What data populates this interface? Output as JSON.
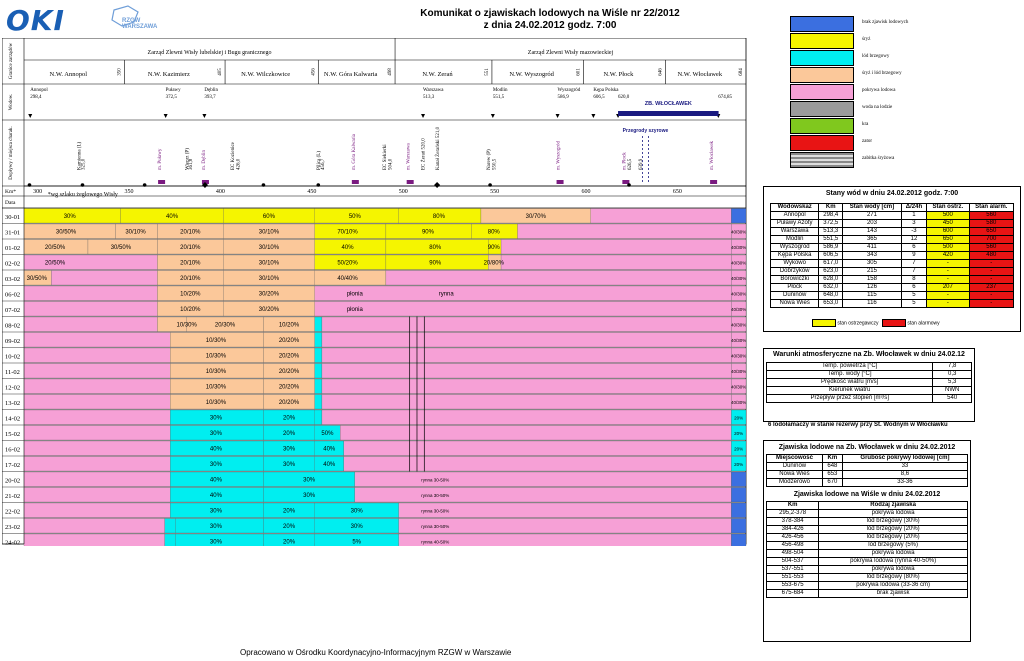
{
  "header": {
    "logo_okl": "OKI",
    "logo_rzgw": "RZGW WARSZAWA",
    "title_line1": "Komunikat o zjawiskach lodowych na Wiśle nr 22/2012",
    "title_line2": "z dnia 24.02.2012 godz. 7:00"
  },
  "footer": "Opracowano w Ośrodku Koordynacyjno-Informacyjnym RZGW w Warszawie",
  "colors": {
    "brak": "#3b6fe0",
    "sryz": "#f5f500",
    "lod_brzegowy": "#00eef0",
    "sryz_lod": "#fbc89a",
    "pokrywa": "#f6a0d6",
    "woda_na_lodzie": "#9b9b9b",
    "kra": "#80c81e",
    "zator": "#e81414",
    "strefa": "#3b3bd8",
    "dark": "#1a1a80",
    "ostrz": "#f5f500",
    "alarm": "#e81414"
  },
  "legend": [
    {
      "label": "brak zjawisk lodowych",
      "color": "#3b6fe0"
    },
    {
      "label": "śryż",
      "color": "#f5f500"
    },
    {
      "label": "lód brzegowy",
      "color": "#00eef0"
    },
    {
      "label": "śryż i lód brzegowy",
      "color": "#fbc89a"
    },
    {
      "label": "pokrywa lodowa",
      "color": "#f6a0d6"
    },
    {
      "label": "woda na lodzie",
      "color": "#9b9b9b"
    },
    {
      "label": "kra",
      "color": "#80c81e"
    },
    {
      "label": "zator",
      "color": "#e81414"
    },
    {
      "label": "zabitka śryżowa",
      "color": "#b8b8b8"
    }
  ],
  "left_labels": {
    "granice": "Granice zarządów",
    "wodow": "Wodow.",
    "dopl": "Dopływy / miejsca charak.",
    "km": "Km*",
    "data": "Data"
  },
  "zarzady": [
    {
      "name": "Zarząd Zlewni Wisły lubelskiej i Bugu granicznego"
    },
    {
      "name": "Zarząd Zlewni Wisły mazowieckiej"
    }
  ],
  "nw": [
    {
      "label": "N.W. Annopol",
      "km": "350"
    },
    {
      "label": "N.W. Kazimierz",
      "km": "405"
    },
    {
      "label": "N.W. Wilczkowice",
      "km": "456"
    },
    {
      "label": "N.W. Góra Kalwaria",
      "km": "498"
    },
    {
      "label": "N.W. Zerań",
      "km": "551"
    },
    {
      "label": "N.W. Wyszogród",
      "km": "601"
    },
    {
      "label": "N.W. Płock",
      "km": "646"
    },
    {
      "label": "N.W. Włocławek",
      "km": "684"
    }
  ],
  "wodowskazy": [
    {
      "name": "Annopol",
      "km": "298,4"
    },
    {
      "name": "Puławy",
      "km": "372,5"
    },
    {
      "name": "Dęblin",
      "km": "393,7"
    },
    {
      "name": "Warszawa",
      "km": "513,3"
    },
    {
      "name": "Modlin",
      "km": "551,5"
    },
    {
      "name": "Wyszogród",
      "km": "586,9"
    },
    {
      "name": "Kępa Polska",
      "km": "606,5"
    },
    {
      "name": "",
      "km": "620,0"
    },
    {
      "name": "",
      "km": "674,85"
    }
  ],
  "zb_wloclawek": "ZB. WŁOCŁAWEK",
  "doplywy": [
    "Kamienna (L)",
    "325,0",
    "m. Puławy",
    "Wieprz (P)",
    "361,8",
    "m. Dęblin",
    "EC Kozienice",
    "426,0",
    "Pilica (L)",
    "456,7",
    "m. Góra Kalwaria",
    "EC Siekierki",
    "504,0",
    "m. Warszawa",
    "EC Żerań 520,0",
    "Kanał Żerański 521,0",
    "Narew (P)",
    "550,5",
    "m. Wyszogród",
    "m. Płock",
    "626,5",
    "639,9",
    "Przegrody szyrowe",
    "m. Włocławek"
  ],
  "km_axis_note": "*wg szlaku żeglowego Wisły",
  "km_ticks": [
    "300",
    "350",
    "400",
    "450",
    "500",
    "550",
    "600",
    "650"
  ],
  "dates": [
    "30-01",
    "31-01",
    "01-02",
    "02-02",
    "03-02",
    "06-02",
    "07-02",
    "08-02",
    "09-02",
    "10-02",
    "11-02",
    "12-02",
    "13-02",
    "14-02",
    "15-02",
    "16-02",
    "17-02",
    "20-02",
    "21-02",
    "22-02",
    "23-02",
    "24-02"
  ],
  "row_labels": [
    [
      "30%",
      "40%",
      "60%",
      "50%",
      "80%",
      "30/70%"
    ],
    [
      "30/50%",
      "30/10%",
      "20/10%",
      "30/10%",
      "70/10%",
      "90%",
      "80%",
      "40/30%"
    ],
    [
      "20/50%",
      "30/50%",
      "20/10%",
      "30/10%",
      "40%",
      "80%",
      "90%",
      "40/30%"
    ],
    [
      "20/50%",
      "20/10%",
      "30/10%",
      "50/20%",
      "90%",
      "20/80%",
      "40/30%"
    ],
    [
      "30/50%",
      "20/10%",
      "30/10%",
      "40/40%",
      "40/30%"
    ],
    [
      "10/20%",
      "30/20%",
      "płonia",
      "rynna",
      "40/30%"
    ],
    [
      "10/20%",
      "30/20%",
      "płonia",
      "40/30%"
    ],
    [
      "10/30%",
      "20/30%",
      "10/20%",
      "40/30%"
    ],
    [
      "10/30%",
      "20/20%",
      "40/30%"
    ],
    [
      "10/30%",
      "20/20%",
      "40/30%"
    ],
    [
      "10/30%",
      "20/20%",
      "40/30%"
    ],
    [
      "10/30%",
      "20/20%",
      "40/30%"
    ],
    [
      "10/30%",
      "20/20%",
      "40/30%"
    ],
    [
      "30%",
      "20%",
      "20%"
    ],
    [
      "30%",
      "20%",
      "50%",
      "20%"
    ],
    [
      "40%",
      "30%",
      "40%",
      "20%"
    ],
    [
      "30%",
      "30%",
      "40%",
      "20%"
    ],
    [
      "40%",
      "30%",
      "rynna 30-50%"
    ],
    [
      "40%",
      "30%",
      "rynna 30-50%"
    ],
    [
      "30%",
      "20%",
      "30%",
      "rynna 30-50%"
    ],
    [
      "30%",
      "20%",
      "30%",
      "rynna 30-50%"
    ],
    [
      "30%",
      "20%",
      "5%",
      "rynna 40-50%"
    ]
  ],
  "chart_data": {
    "type": "heatmap",
    "title": "Komunikat o zjawiskach lodowych na Wiśle nr 22/2012",
    "x_axis": "Km",
    "x_range": [
      295,
      690
    ],
    "rows": "dates",
    "segments_by_date": {
      "30-01": [
        [
          295,
          348,
          "sryz",
          "30%"
        ],
        [
          348,
          404,
          "sryz",
          "40%"
        ],
        [
          404,
          454,
          "sryz",
          "60%"
        ],
        [
          454,
          500,
          "sryz",
          "50%"
        ],
        [
          500,
          545,
          "sryz",
          "80%"
        ],
        [
          545,
          605,
          "sryz_lod",
          "30/70%"
        ],
        [
          605,
          682,
          "pokrywa",
          ""
        ],
        [
          682,
          690,
          "brak",
          ""
        ]
      ],
      "31-01": [
        [
          295,
          345,
          "sryz_lod",
          "30/50%"
        ],
        [
          345,
          368,
          "sryz_lod",
          "30/10%"
        ],
        [
          368,
          404,
          "sryz_lod",
          "20/10%"
        ],
        [
          404,
          454,
          "sryz_lod",
          "30/10%"
        ],
        [
          454,
          493,
          "sryz",
          "70/10%"
        ],
        [
          493,
          540,
          "sryz",
          "90%"
        ],
        [
          540,
          565,
          "sryz",
          "80%"
        ],
        [
          565,
          682,
          "pokrywa",
          ""
        ],
        [
          682,
          690,
          "pokrywa",
          "40/30%"
        ]
      ],
      "24-02": [
        [
          295,
          375,
          "pokrywa",
          ""
        ],
        [
          375,
          404,
          "lod_brzegowy",
          "30%"
        ],
        [
          404,
          454,
          "lod_brzegowy",
          "20%"
        ],
        [
          454,
          500,
          "lod_brzegowy",
          "5%"
        ],
        [
          500,
          530,
          "pokrywa",
          "rynna 40-50%"
        ],
        [
          530,
          682,
          "pokrywa",
          ""
        ],
        [
          682,
          690,
          "brak",
          ""
        ]
      ]
    }
  },
  "stany": {
    "title": "Stany wód w dniu 24.02.2012 godz. 7:00",
    "headers": [
      "Wodowskaz",
      "Km",
      "Stan wody [cm]",
      "Δ/24h",
      "Stan ostrz.",
      "Stan alarm."
    ],
    "rows": [
      [
        "Annopol",
        "298,4",
        "271",
        "1",
        "500",
        "560"
      ],
      [
        "Puławy Azoty",
        "372,5",
        "203",
        "3",
        "450",
        "580"
      ],
      [
        "Warszawa",
        "513,3",
        "143",
        "-3",
        "600",
        "650"
      ],
      [
        "Modlin",
        "551,5",
        "365",
        "12",
        "650",
        "700"
      ],
      [
        "Wyszogród",
        "586,9",
        "411",
        "6",
        "500",
        "560"
      ],
      [
        "Kępa Polska",
        "606,5",
        "343",
        "9",
        "420",
        "480"
      ],
      [
        "Wykowo",
        "617,0",
        "305",
        "7",
        "-",
        "-"
      ],
      [
        "Dobrzyków",
        "623,0",
        "215",
        "7",
        "-",
        "-"
      ],
      [
        "Borowiczki",
        "628,0",
        "158",
        "8",
        "-",
        "-"
      ],
      [
        "Płock",
        "632,0",
        "126",
        "6",
        "207",
        "237"
      ],
      [
        "Duninów",
        "648,0",
        "115",
        "5",
        "-",
        "-"
      ],
      [
        "Nowa Wieś",
        "653,0",
        "116",
        "5",
        "-",
        "-"
      ]
    ],
    "legend_ostrz": "stan ostrzegawczy",
    "legend_alarm": "stan alarmowy"
  },
  "warunki": {
    "title": "Warunki atmosferyczne na Zb. Włocławek w dniu 24.02.12",
    "rows": [
      [
        "Temp. powietrza [°C]",
        "7,8"
      ],
      [
        "Temp. wody [°C]",
        "0,3"
      ],
      [
        "Prędkość wiatru [m/s]",
        "5,3"
      ],
      [
        "Kierunek wiatru",
        "NWN"
      ],
      [
        "Przepływ przez stopień [m³/s]",
        "540"
      ]
    ],
    "note": "6 lodołamaczy w stanie rezerwy przy St. Wodnym w Włocławku"
  },
  "zjawiska_zb": {
    "title": "Zjawiska lodowe na Zb. Włocławek w dniu 24.02.2012",
    "headers": [
      "Miejscowość",
      "Km",
      "Grubość pokrywy lodowej [cm]"
    ],
    "rows": [
      [
        "Duninów",
        "648",
        "33"
      ],
      [
        "Nowa Wieś",
        "653",
        "8,6"
      ],
      [
        "Modzerowo",
        "670",
        "33-36"
      ]
    ]
  },
  "zjawiska_wisla": {
    "title": "Zjawiska lodowe na Wiśle w dniu 24.02.2012",
    "headers": [
      "Km",
      "Rodzaj zjawiska"
    ],
    "rows": [
      [
        "295,2-378",
        "pokrywa lodowa"
      ],
      [
        "378-384",
        "lód brzegowy (30%)"
      ],
      [
        "384-426",
        "lód brzegowy (20%)"
      ],
      [
        "426-456",
        "lód brzegowy (20%)"
      ],
      [
        "456-498",
        "lód brzegowy (5%)"
      ],
      [
        "498-504",
        "pokrywa lodowa"
      ],
      [
        "504-537",
        "pokrywa lodowa (rynna 40-50%)"
      ],
      [
        "537-551",
        "pokrywa lodowa"
      ],
      [
        "551-553",
        "lód brzegowy (80%)"
      ],
      [
        "553-675",
        "pokrywa lodowa (33-36 cm)"
      ],
      [
        "675-684",
        "brak zjawisk"
      ]
    ]
  }
}
